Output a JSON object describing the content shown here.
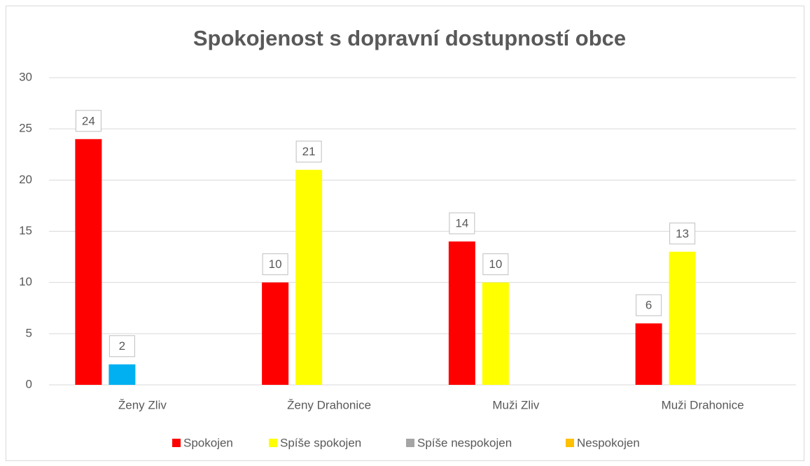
{
  "chart_data": {
    "type": "bar",
    "title": "Spokojenost s dopravní dostupností obce",
    "categories": [
      "Ženy Zliv",
      "Ženy Drahonice",
      "Muži Zliv",
      "Muži Drahonice"
    ],
    "series": [
      {
        "name": "Spokojen",
        "color": "#ff0000",
        "values": [
          24,
          10,
          14,
          6
        ]
      },
      {
        "name": "Spíše spokojen",
        "color": "#ffff00",
        "point_colors": [
          "#00b0f0",
          null,
          null,
          null
        ],
        "values": [
          2,
          21,
          10,
          13
        ]
      },
      {
        "name": "Spíše nespokojen",
        "color": "#a5a5a5",
        "values": [
          null,
          null,
          null,
          null
        ]
      },
      {
        "name": "Nespokojen",
        "color": "#ffc000",
        "values": [
          null,
          null,
          null,
          null
        ]
      }
    ],
    "ylim": [
      0,
      30
    ],
    "yticks": [
      0,
      5,
      10,
      15,
      20,
      25,
      30
    ],
    "grid": true,
    "legend": "bottom"
  }
}
